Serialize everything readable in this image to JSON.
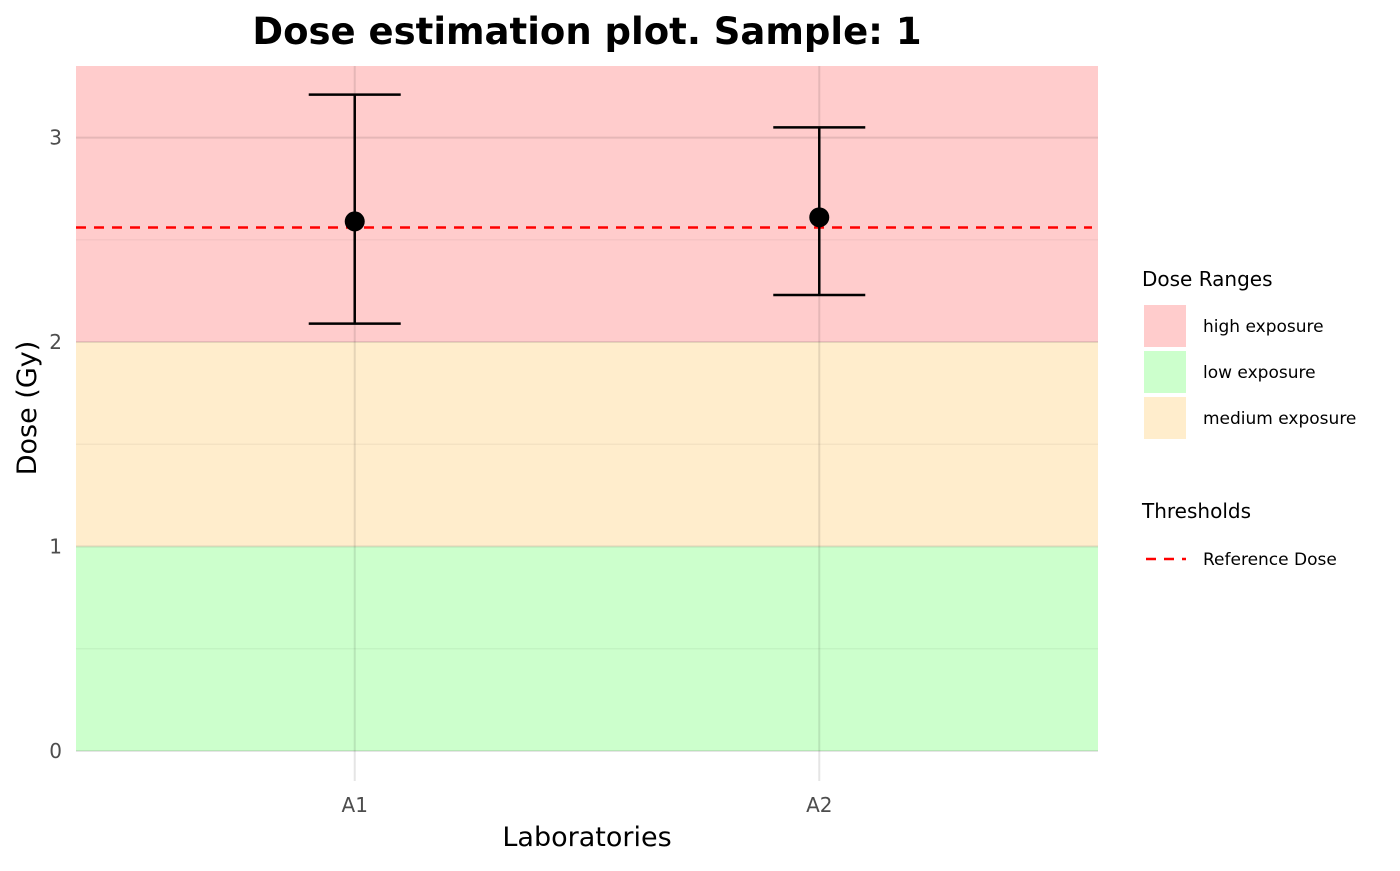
{
  "chart_data": {
    "type": "scatter",
    "title": "Dose estimation plot. Sample:  1",
    "xlabel": "Laboratories",
    "ylabel": "Dose (Gy)",
    "categories": [
      "A1",
      "A2"
    ],
    "points": [
      {
        "category": "A1",
        "value": 2.59,
        "lower": 2.09,
        "upper": 3.21
      },
      {
        "category": "A2",
        "value": 2.61,
        "lower": 2.23,
        "upper": 3.05
      }
    ],
    "ylim": [
      0,
      3.35
    ],
    "yticks": [
      "0",
      "1",
      "2",
      "3"
    ],
    "grid": true,
    "dose_ranges": {
      "title": "Dose Ranges",
      "items": [
        {
          "label": "high exposure",
          "from": 2,
          "to": 3.35,
          "color": "#ffcccc"
        },
        {
          "label": "low exposure",
          "from": 0,
          "to": 1,
          "color": "#ccffcc"
        },
        {
          "label": "medium exposure",
          "from": 1,
          "to": 2,
          "color": "#ffedcc"
        }
      ]
    },
    "thresholds": {
      "title": "Thresholds",
      "items": [
        {
          "label": "Reference Dose",
          "value": 2.56,
          "color": "#ff0000",
          "style": "dashed"
        }
      ]
    },
    "legend_position": "right"
  }
}
